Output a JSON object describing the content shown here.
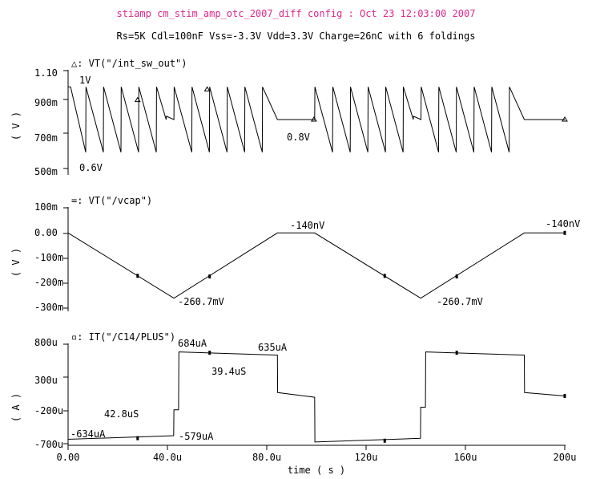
{
  "title": "stiamp cm_stim_amp_otc_2007_diff config : Oct 23 12:03:00 2007",
  "subtitle": "Rs=5K Cdl=100nF Vss=-3.3V Vdd=3.3V Charge=26nC with 6 foldings",
  "colors": {
    "title": "#e0288c",
    "trace": "#000000",
    "background": "#ffffff"
  },
  "chart_data": [
    {
      "type": "line",
      "trace_label": "△: VT(\"/int_sw_out\")",
      "unit_label": "( V )",
      "y_ticks": [
        "1.10",
        "900m",
        "700m",
        "500m"
      ],
      "ylim": [
        0.5,
        1.1
      ],
      "marker": "triangle",
      "series": [
        {
          "x": [
            0,
            1,
            7.1,
            7.2,
            14.2,
            14.3,
            21.3,
            21.4,
            28.4,
            28.5,
            35.5,
            35.6,
            39.5,
            39.6,
            42.6,
            42.7,
            49.8,
            49.9,
            56.9,
            57,
            64,
            64.1,
            71.1,
            71.2,
            78.2,
            78.3,
            84.3,
            84.4,
            99.3,
            99.4,
            106.5,
            106.6,
            113.6,
            113.7,
            120.7,
            120.8,
            127.8,
            127.9,
            134.9,
            135,
            139,
            139.1,
            142.1,
            142.2,
            149.2,
            149.3,
            156.3,
            156.4,
            163.4,
            163.5,
            170.5,
            170.6,
            177.6,
            177.7,
            183.7,
            183.8,
            200
          ],
          "y": [
            1.0,
            1.0,
            0.6,
            1.0,
            0.6,
            1.0,
            0.6,
            1.0,
            0.6,
            1.0,
            0.6,
            1.0,
            0.8,
            0.82,
            0.8,
            1.0,
            0.6,
            1.0,
            0.6,
            1.0,
            0.6,
            1.0,
            0.6,
            1.0,
            0.6,
            1.0,
            0.8,
            0.8,
            0.8,
            1.0,
            0.6,
            1.0,
            0.6,
            1.0,
            0.6,
            1.0,
            0.6,
            1.0,
            0.6,
            1.0,
            0.8,
            0.82,
            0.8,
            1.0,
            0.6,
            1.0,
            0.6,
            1.0,
            0.6,
            1.0,
            0.6,
            1.0,
            0.6,
            1.0,
            0.8,
            0.8,
            0.8
          ]
        }
      ],
      "markers": [
        [
          28.0,
          0.92
        ],
        [
          56.0,
          0.985
        ],
        [
          99.0,
          0.8
        ],
        [
          200,
          0.8
        ]
      ],
      "annotations": [
        {
          "text": "1V",
          "x": 4.5,
          "y": 1.05
        },
        {
          "text": "0.6V",
          "x": 3.5,
          "y": 0.525
        },
        {
          "text": "0.8V",
          "x": 88,
          "y": 0.725
        }
      ]
    },
    {
      "type": "line",
      "trace_label": "=: VT(\"/vcap\")",
      "unit_label": "( V )",
      "y_ticks": [
        "100m",
        "0.00",
        "-100m",
        "-200m",
        "-300m"
      ],
      "ylim": [
        -0.3,
        0.1
      ],
      "marker": "bar",
      "series": [
        {
          "x": [
            0,
            42.6,
            84.3,
            99.3,
            142,
            183.7,
            200
          ],
          "y": [
            0,
            -0.2607,
            0,
            0,
            -0.2607,
            0,
            0
          ]
        }
      ],
      "markers": [
        [
          28,
          -0.1713
        ],
        [
          57,
          -0.1738
        ],
        [
          127.5,
          -0.1715
        ],
        [
          156.5,
          -0.1738
        ],
        [
          200,
          0
        ]
      ],
      "annotations": [
        {
          "text": "-140nV",
          "x": 89,
          "y": 0.024
        },
        {
          "text": "-140nV",
          "x": 192,
          "y": 0.029
        },
        {
          "text": "-260.7mV",
          "x": 44.5,
          "y": -0.272
        },
        {
          "text": "-260.7mV",
          "x": 144,
          "y": -0.272
        }
      ]
    },
    {
      "type": "line",
      "trace_label": "▫: IT(\"/C14/PLUS\")",
      "unit_label": "( A )",
      "y_ticks": [
        "800u",
        "300u",
        "-200u",
        "-700u"
      ],
      "ylim": [
        -0.0007,
        0.0008
      ],
      "marker": "bar",
      "x_ticks": [
        "0.00",
        "40.0u",
        "80.0u",
        "120u",
        "160u",
        "200u"
      ],
      "xlabel": "time ( s )",
      "series": [
        {
          "x": [
            0,
            0,
            42.5,
            42.6,
            44.5,
            44.6,
            84.3,
            84.4,
            99.3,
            99.4,
            141.9,
            142,
            143.9,
            144,
            183.7,
            183.8,
            200
          ],
          "y": [
            -0.0006,
            -0.000634,
            -0.000579,
            -0.00019,
            -0.00019,
            0.000684,
            0.000635,
            7e-05,
            0,
            -0.000675,
            -0.000619,
            -0.00015,
            -0.00015,
            0.000684,
            0.000635,
            7e-05,
            2e-05
          ],
          "x_extra_start": [
            0,
            -0.0004
          ]
        }
      ],
      "markers": [
        [
          28,
          -0.000617
        ],
        [
          57,
          0.000671
        ],
        [
          127.5,
          -0.000655
        ],
        [
          156.5,
          0.000671
        ],
        [
          200,
          2e-05
        ]
      ],
      "annotations": [
        {
          "text": "684uA",
          "x": 43,
          "y": 0.000747
        },
        {
          "text": "635uA",
          "x": 76.5,
          "y": 0.000686
        },
        {
          "text": "39.4uS",
          "x": 58.5,
          "y": 0.000509
        },
        {
          "text": "42.8uS",
          "x": 14,
          "y": -0.00036
        },
        {
          "text": "-634uA",
          "x": 0.5,
          "y": -0.00054
        },
        {
          "text": "-579uA",
          "x": 44.5,
          "y": -0.00055
        }
      ]
    }
  ]
}
